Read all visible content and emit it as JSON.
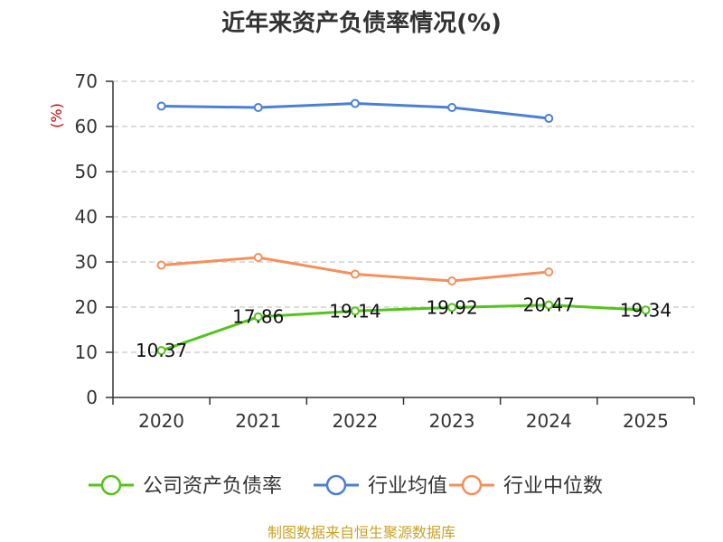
{
  "chart_data": {
    "type": "line",
    "title": "近年来资产负债率情况(%)",
    "ylabel": "(%)",
    "ylim": [
      0,
      70
    ],
    "yticks": [
      0,
      10,
      20,
      30,
      40,
      50,
      60,
      70
    ],
    "grid": true,
    "legend_position": "bottom",
    "categories": [
      "2020",
      "2021",
      "2022",
      "2023",
      "2024",
      "2025"
    ],
    "series": [
      {
        "name": "公司资产负债率",
        "color": "#52c41a",
        "values": [
          10.37,
          17.86,
          19.14,
          19.92,
          20.47,
          19.34
        ],
        "labels": [
          "10.37",
          "17.86",
          "19.14",
          "19.92",
          "20.47",
          "19.34"
        ]
      },
      {
        "name": "行业均值",
        "color": "#4a7fd8",
        "values": [
          64.5,
          64.2,
          65.1,
          64.2,
          61.8,
          null
        ]
      },
      {
        "name": "行业中位数",
        "color": "#f5905a",
        "values": [
          29.3,
          31.0,
          27.3,
          25.8,
          27.8,
          null
        ]
      }
    ]
  },
  "source": {
    "text": "制图数据来自恒生聚源数据库",
    "color": "#c9a227"
  },
  "colors": {
    "unit": "#cc0000",
    "grid": "#c8c8c8",
    "axis": "#333333"
  }
}
